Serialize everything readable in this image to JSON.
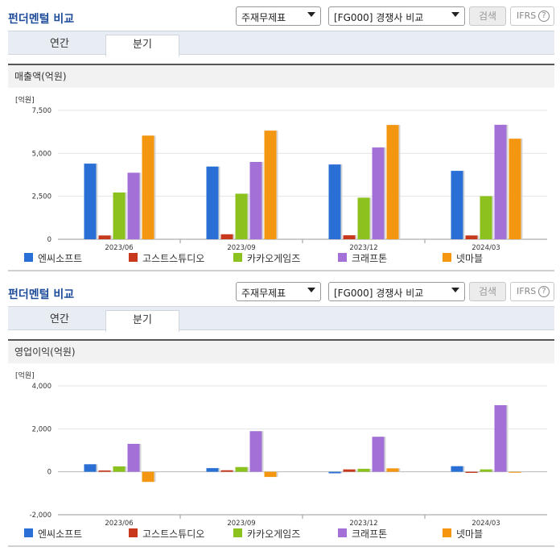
{
  "panels": [
    {
      "title": "펀더멘털 비교",
      "select1": "주재무제표",
      "select2": "[FG000] 경쟁사 비교",
      "search_label": "검색",
      "ifrs_label": "IFRS",
      "ifrs_help": "?",
      "tabs": [
        "연간",
        "분기"
      ],
      "active_tab": 1,
      "subheader": "매출액(억원)",
      "unit": "[억원]"
    },
    {
      "title": "펀더멘털 비교",
      "select1": "주재무제표",
      "select2": "[FG000] 경쟁사 비교",
      "search_label": "검색",
      "ifrs_label": "IFRS",
      "ifrs_help": "?",
      "tabs": [
        "연간",
        "분기"
      ],
      "active_tab": 1,
      "subheader": "영업이익(억원)",
      "unit": "[억원]"
    }
  ],
  "colors": {
    "엔씨소프트": "#2a6fd6",
    "고스트스튜디오": "#c8381c",
    "카카오게임즈": "#8cc21e",
    "크래프톤": "#a370d8",
    "넷마블": "#f4960f"
  },
  "chart_data": [
    {
      "type": "bar",
      "title": "매출액(억원)",
      "ylabel": "[억원]",
      "categories": [
        "2023/06",
        "2023/09",
        "2023/12",
        "2024/03"
      ],
      "ylim": [
        0,
        7500
      ],
      "yticks": [
        0,
        2500,
        5000,
        7500
      ],
      "ytick_labels": [
        "0",
        "2,500",
        "5,000",
        "7,500"
      ],
      "legend_position": "bottom",
      "series": [
        {
          "name": "엔씨소프트",
          "values": [
            4400,
            4230,
            4350,
            3980
          ]
        },
        {
          "name": "고스트스튜디오",
          "values": [
            220,
            290,
            230,
            220
          ]
        },
        {
          "name": "카카오게임즈",
          "values": [
            2720,
            2650,
            2420,
            2510
          ]
        },
        {
          "name": "크래프톤",
          "values": [
            3870,
            4500,
            5340,
            6660
          ]
        },
        {
          "name": "넷마블",
          "values": [
            6030,
            6320,
            6650,
            5850
          ]
        }
      ]
    },
    {
      "type": "bar",
      "title": "영업이익(억원)",
      "ylabel": "[억원]",
      "categories": [
        "2023/06",
        "2023/09",
        "2023/12",
        "2024/03"
      ],
      "ylim": [
        -2000,
        4000
      ],
      "yticks": [
        -2000,
        0,
        2000,
        4000
      ],
      "ytick_labels": [
        "-2,000",
        "0",
        "2,000",
        "4,000"
      ],
      "legend_position": "bottom",
      "series": [
        {
          "name": "엔씨소프트",
          "values": [
            350,
            170,
            -70,
            260
          ]
        },
        {
          "name": "고스트스튜디오",
          "values": [
            60,
            70,
            110,
            -50
          ]
        },
        {
          "name": "카카오게임즈",
          "values": [
            250,
            220,
            140,
            110
          ]
        },
        {
          "name": "크래프톤",
          "values": [
            1300,
            1890,
            1630,
            3100
          ]
        },
        {
          "name": "넷마블",
          "values": [
            -470,
            -240,
            160,
            -40
          ]
        }
      ]
    }
  ]
}
